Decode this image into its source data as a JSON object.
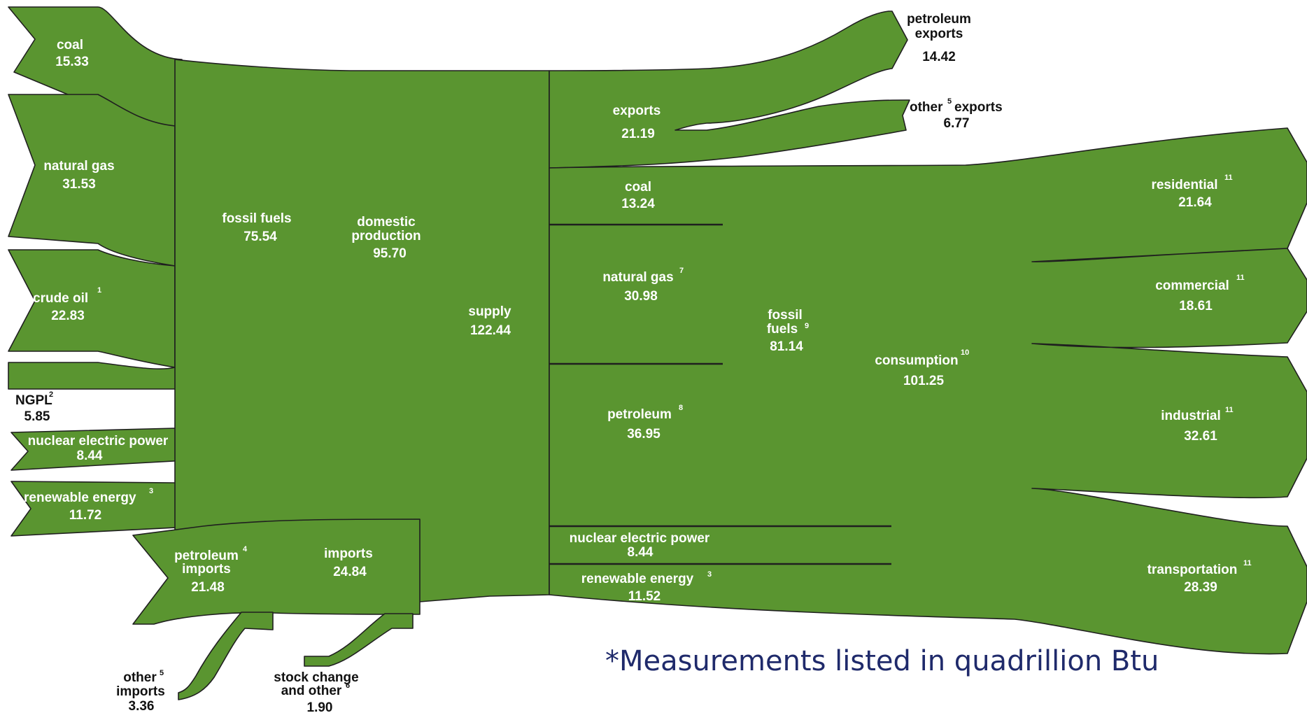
{
  "colors": {
    "flow": "#5a9530",
    "outline": "#1f1f1f",
    "note": "#1f2a6b"
  },
  "sources": {
    "coal": {
      "label": "coal",
      "value": "15.33"
    },
    "natural_gas": {
      "label": "natural gas",
      "value": "31.53"
    },
    "crude_oil": {
      "label": "crude oil",
      "sup": "1",
      "value": "22.83"
    },
    "ngpl": {
      "label": "NGPL",
      "sup": "2",
      "value": "5.85"
    },
    "nuclear": {
      "label": "nuclear electric power",
      "value": "8.44"
    },
    "renewable": {
      "label": "renewable energy",
      "sup": "3",
      "value": "11.72"
    }
  },
  "fossil_fuels": {
    "label": "fossil fuels",
    "value": "75.54"
  },
  "domestic_production": {
    "line1": "domestic",
    "line2": "production",
    "value": "95.70"
  },
  "imports": {
    "petroleum": {
      "line1": "petroleum",
      "sup": "4",
      "line2": "imports",
      "value": "21.48"
    },
    "total": {
      "label": "imports",
      "value": "24.84"
    },
    "other": {
      "line1": "other",
      "sup": "5",
      "line2": "imports",
      "value": "3.36"
    },
    "stock_change": {
      "line1": "stock change",
      "line2": "and other",
      "sup": "6",
      "value": "1.90"
    }
  },
  "supply": {
    "label": "supply",
    "value": "122.44"
  },
  "exports": {
    "total": {
      "label": "exports",
      "value": "21.19"
    },
    "petroleum": {
      "line1": "petroleum",
      "line2": "exports",
      "value": "14.42"
    },
    "other": {
      "label_a": "other",
      "sup": "5",
      "label_b": "exports",
      "value": "6.77"
    }
  },
  "consumption_by_source": {
    "coal": {
      "label": "coal",
      "value": "13.24"
    },
    "natural_gas": {
      "label": "natural gas",
      "sup": "7",
      "value": "30.98"
    },
    "petroleum": {
      "label": "petroleum",
      "sup": "8",
      "value": "36.95"
    },
    "nuclear": {
      "label": "nuclear electric power",
      "value": "8.44"
    },
    "renewable": {
      "label": "renewable energy",
      "sup": "3",
      "value": "11.52"
    }
  },
  "fossil_fuels_consumed": {
    "line1": "fossil",
    "line2": "fuels",
    "sup": "9",
    "value": "81.14"
  },
  "consumption": {
    "label": "consumption",
    "sup": "10",
    "value": "101.25"
  },
  "sectors": {
    "residential": {
      "label": "residential",
      "sup": "11",
      "value": "21.64"
    },
    "commercial": {
      "label": "commercial",
      "sup": "11",
      "value": "18.61"
    },
    "industrial": {
      "label": "industrial",
      "sup": "11",
      "value": "32.61"
    },
    "transportation": {
      "label": "transportation",
      "sup": "11",
      "value": "28.39"
    }
  },
  "footnote": "*Measurements listed in quadrillion Btu"
}
